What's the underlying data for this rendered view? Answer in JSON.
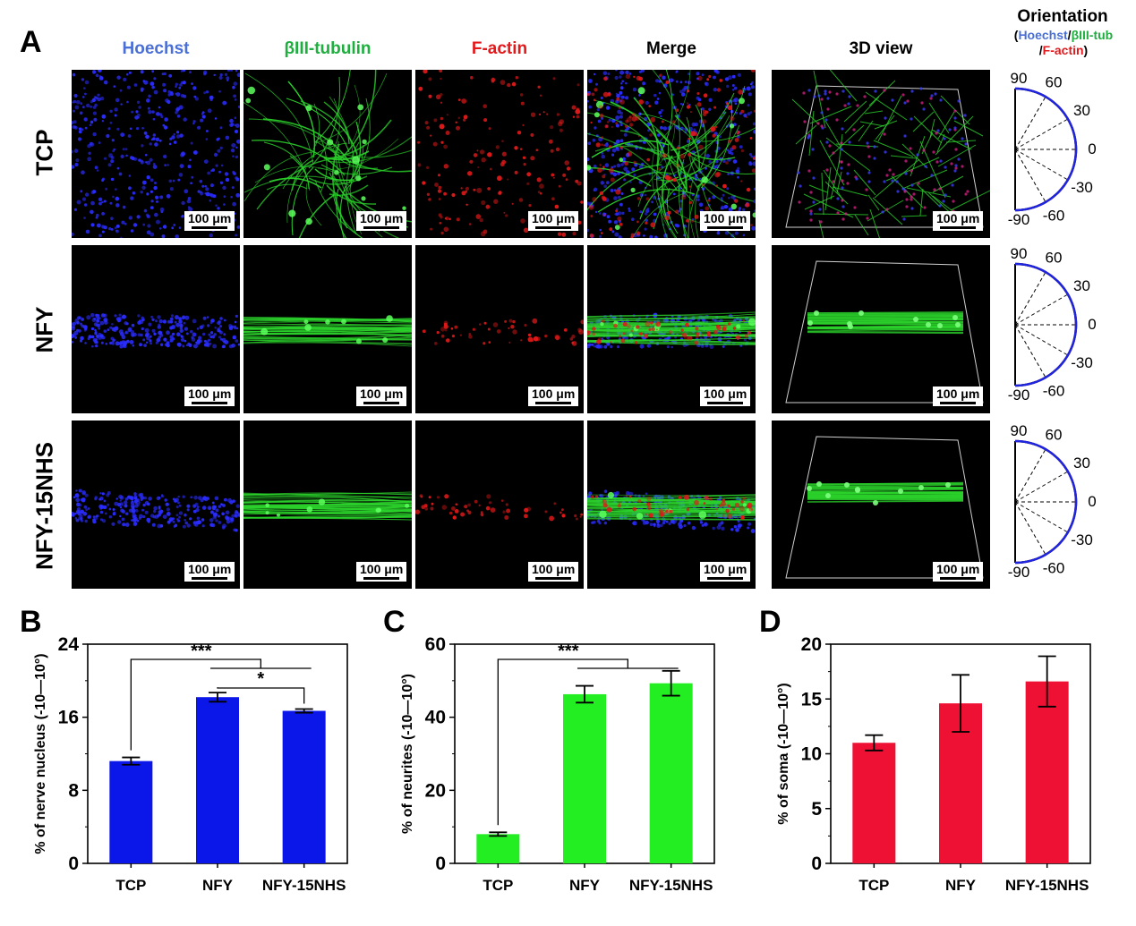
{
  "figure": {
    "panel_a_letter": "A",
    "panel_b_letter": "B",
    "panel_c_letter": "C",
    "panel_d_letter": "D",
    "columns": [
      {
        "label": "Hoechst",
        "color": "#4a6fd6"
      },
      {
        "label": "βIII-tubulin",
        "color": "#1fae3f"
      },
      {
        "label": "F-actin",
        "color": "#e3191c"
      },
      {
        "label": "Merge",
        "color": "#000000"
      },
      {
        "label": "3D view",
        "color": "#000000"
      }
    ],
    "rows": [
      "TCP",
      "NFY",
      "NFY-15NHS"
    ],
    "scale_bar": "100 μm",
    "orientation": {
      "title": "Orientation",
      "legend_open": "(",
      "legend_hoechst": "Hoechst",
      "legend_sep1": "/",
      "legend_tub": "βIII-tub",
      "legend_sep2": "/",
      "legend_actin": "F-actin",
      "legend_close": ")",
      "angle_labels": [
        "90",
        "60",
        "30",
        "0",
        "-30",
        "-60",
        "-90"
      ]
    }
  },
  "chart_data": [
    {
      "type": "bar",
      "panel": "B",
      "categories": [
        "TCP",
        "NFY",
        "NFY-15NHS"
      ],
      "values": [
        11.2,
        18.2,
        16.7
      ],
      "errors": [
        0.4,
        0.5,
        0.2
      ],
      "ylabel": "% of nerve nucleus (-10—10°)",
      "ylim": [
        0,
        24
      ],
      "yticks": [
        0,
        8,
        16,
        24
      ],
      "color": "#0b16e8",
      "significance": [
        {
          "from": "TCP",
          "to": "NFY / NFY-15NHS",
          "label": "***"
        },
        {
          "from": "NFY",
          "to": "NFY-15NHS",
          "label": "*"
        }
      ]
    },
    {
      "type": "bar",
      "panel": "C",
      "categories": [
        "TCP",
        "NFY",
        "NFY-15NHS"
      ],
      "values": [
        8.0,
        46.3,
        49.3
      ],
      "errors": [
        0.5,
        2.3,
        3.4
      ],
      "ylabel": "% of neurites (-10—10°)",
      "ylim": [
        0,
        60
      ],
      "yticks": [
        0,
        20,
        40,
        60
      ],
      "color": "#22ee22",
      "significance": [
        {
          "from": "TCP",
          "to": "NFY / NFY-15NHS",
          "label": "***"
        }
      ]
    },
    {
      "type": "bar",
      "panel": "D",
      "categories": [
        "TCP",
        "NFY",
        "NFY-15NHS"
      ],
      "values": [
        11.0,
        14.6,
        16.6
      ],
      "errors": [
        0.7,
        2.6,
        2.3
      ],
      "ylabel": "% of soma (-10—10°)",
      "ylim": [
        0,
        20
      ],
      "yticks": [
        0,
        5,
        10,
        15,
        20
      ],
      "color": "#ee1133",
      "significance": []
    }
  ]
}
